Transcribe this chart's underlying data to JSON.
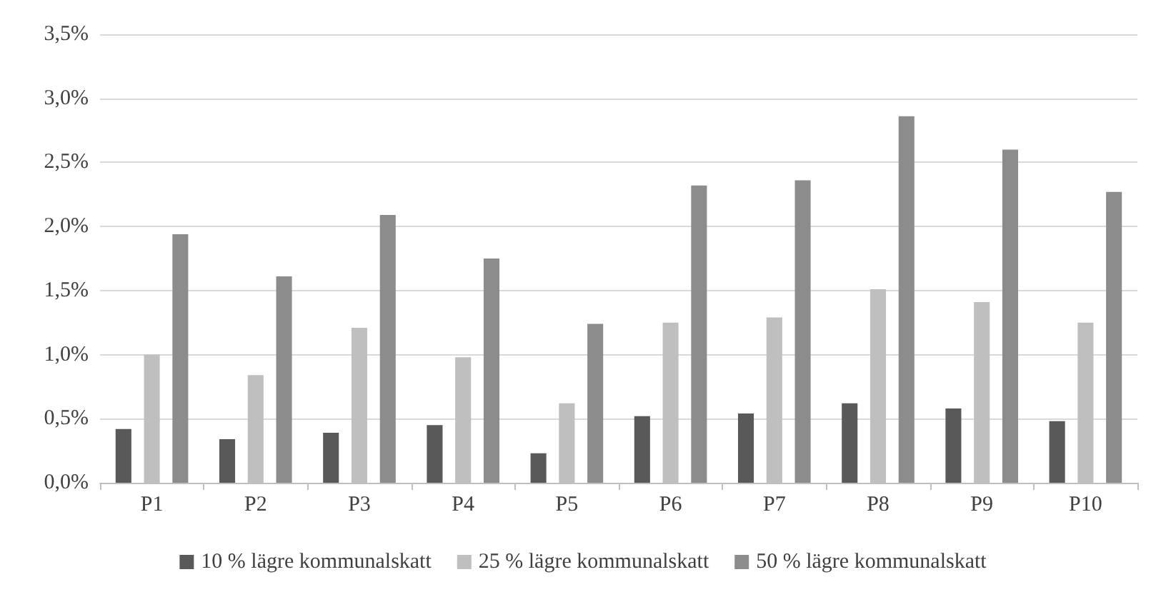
{
  "chart_data": {
    "type": "bar",
    "categories": [
      "P1",
      "P2",
      "P3",
      "P4",
      "P5",
      "P6",
      "P7",
      "P8",
      "P9",
      "P10"
    ],
    "series": [
      {
        "name": "10 % lägre kommunalskatt",
        "color": "#595959",
        "values": [
          0.42,
          0.34,
          0.39,
          0.45,
          0.23,
          0.52,
          0.54,
          0.62,
          0.58,
          0.48
        ]
      },
      {
        "name": "25 % lägre kommunalskatt",
        "color": "#bfbfbf",
        "values": [
          1.0,
          0.84,
          1.21,
          0.98,
          0.62,
          1.25,
          1.29,
          1.51,
          1.41,
          1.25
        ]
      },
      {
        "name": "50 % lägre kommunalskatt",
        "color": "#8c8c8c",
        "values": [
          1.94,
          1.61,
          2.09,
          1.75,
          1.24,
          2.32,
          2.36,
          2.86,
          2.6,
          2.27
        ]
      }
    ],
    "ylim": [
      0,
      3.5
    ],
    "yticks": [
      {
        "value": 0,
        "label": "0,0%"
      },
      {
        "value": 0.5,
        "label": "0,5%"
      },
      {
        "value": 1,
        "label": "1,0%"
      },
      {
        "value": 1.5,
        "label": "1,5%"
      },
      {
        "value": 2,
        "label": "2,0%"
      },
      {
        "value": 2.5,
        "label": "2,5%"
      },
      {
        "value": 3,
        "label": "3,0%"
      },
      {
        "value": 3.5,
        "label": "3,5%"
      }
    ],
    "grid": "y",
    "legend": "bottom"
  }
}
